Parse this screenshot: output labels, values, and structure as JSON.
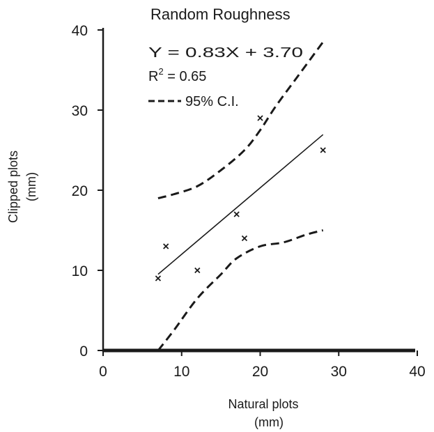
{
  "chart_data": {
    "type": "scatter",
    "title": "Random Roughness",
    "xlabel": [
      "Natural plots",
      "(mm)"
    ],
    "ylabel": [
      "Clipped plots",
      "(mm)"
    ],
    "xlim": [
      0,
      40
    ],
    "ylim": [
      0,
      40
    ],
    "x_ticks": [
      0,
      10,
      20,
      30,
      40
    ],
    "y_ticks": [
      0,
      10,
      20,
      30,
      40
    ],
    "x_tick_labels": [
      "0",
      "10",
      "20",
      "30",
      "40"
    ],
    "y_tick_labels": [
      "0",
      "10",
      "20",
      "30",
      "40"
    ],
    "annotations": {
      "equation": "Y = 0.83X + 3.70",
      "r2_prefix": "R",
      "r2_sup": "2",
      "r2_value": " = 0.65",
      "ci_legend": "95% C.I."
    },
    "points": [
      {
        "x": 7,
        "y": 9
      },
      {
        "x": 8,
        "y": 13
      },
      {
        "x": 12,
        "y": 10
      },
      {
        "x": 17,
        "y": 17
      },
      {
        "x": 18,
        "y": 14
      },
      {
        "x": 20,
        "y": 29
      },
      {
        "x": 28,
        "y": 25
      }
    ],
    "regression": {
      "slope": 0.83,
      "intercept": 3.7,
      "x_range": [
        7,
        28
      ]
    },
    "ci_upper": [
      [
        7,
        19
      ],
      [
        9,
        19.5
      ],
      [
        12,
        20.5
      ],
      [
        15,
        22.5
      ],
      [
        18,
        25
      ],
      [
        20,
        27.5
      ],
      [
        22,
        30.5
      ],
      [
        25,
        34.5
      ],
      [
        28,
        38.5
      ]
    ],
    "ci_lower": [
      [
        7,
        0
      ],
      [
        9,
        2.5
      ],
      [
        12,
        6.5
      ],
      [
        15,
        9.5
      ],
      [
        17,
        11.5
      ],
      [
        20,
        13
      ],
      [
        23,
        13.5
      ],
      [
        26,
        14.5
      ],
      [
        28,
        15
      ]
    ],
    "grid": false,
    "legend": "top-left"
  }
}
